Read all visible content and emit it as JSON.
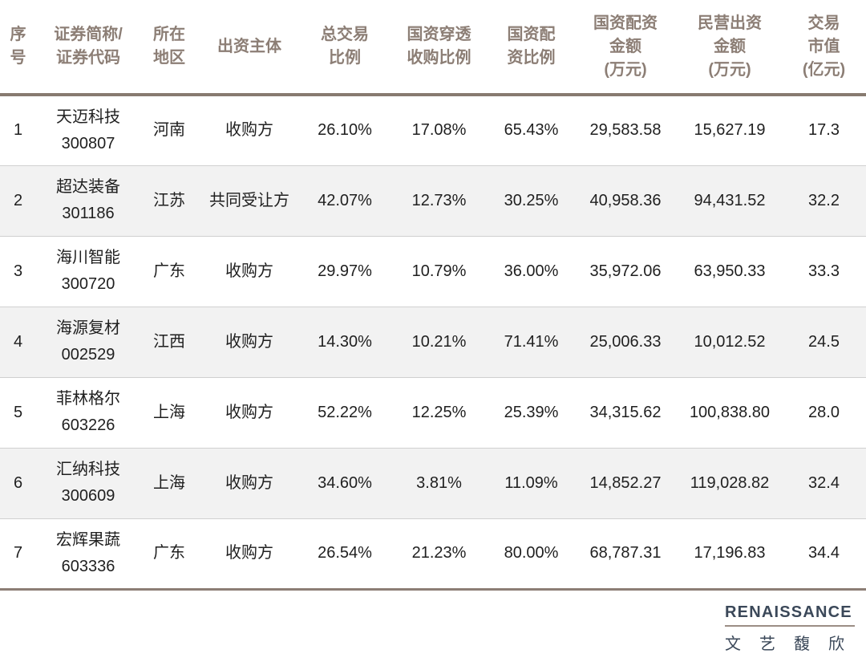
{
  "table": {
    "columns": [
      "序\n号",
      "证券简称/\n证券代码",
      "所在\n地区",
      "出资主体",
      "总交易\n比例",
      "国资穿透\n收购比例",
      "国资配\n资比例",
      "国资配资\n金额\n(万元)",
      "民营出资\n金额\n(万元)",
      "交易\n市值\n(亿元)"
    ],
    "rows": [
      {
        "no": "1",
        "name_code": "天迈科技\n300807",
        "region": "河南",
        "entity": "收购方",
        "total_ratio": "26.10%",
        "penetration_ratio": "17.08%",
        "allocation_ratio": "65.43%",
        "soe_amount": "29,583.58",
        "private_amount": "15,627.19",
        "market_cap": "17.3"
      },
      {
        "no": "2",
        "name_code": "超达装备\n301186",
        "region": "江苏",
        "entity": "共同受让方",
        "total_ratio": "42.07%",
        "penetration_ratio": "12.73%",
        "allocation_ratio": "30.25%",
        "soe_amount": "40,958.36",
        "private_amount": "94,431.52",
        "market_cap": "32.2"
      },
      {
        "no": "3",
        "name_code": "海川智能\n300720",
        "region": "广东",
        "entity": "收购方",
        "total_ratio": "29.97%",
        "penetration_ratio": "10.79%",
        "allocation_ratio": "36.00%",
        "soe_amount": "35,972.06",
        "private_amount": "63,950.33",
        "market_cap": "33.3"
      },
      {
        "no": "4",
        "name_code": "海源复材\n002529",
        "region": "江西",
        "entity": "收购方",
        "total_ratio": "14.30%",
        "penetration_ratio": "10.21%",
        "allocation_ratio": "71.41%",
        "soe_amount": "25,006.33",
        "private_amount": "10,012.52",
        "market_cap": "24.5"
      },
      {
        "no": "5",
        "name_code": "菲林格尔\n603226",
        "region": "上海",
        "entity": "收购方",
        "total_ratio": "52.22%",
        "penetration_ratio": "12.25%",
        "allocation_ratio": "25.39%",
        "soe_amount": "34,315.62",
        "private_amount": "100,838.80",
        "market_cap": "28.0"
      },
      {
        "no": "6",
        "name_code": "汇纳科技\n300609",
        "region": "上海",
        "entity": "收购方",
        "total_ratio": "34.60%",
        "penetration_ratio": "3.81%",
        "allocation_ratio": "11.09%",
        "soe_amount": "14,852.27",
        "private_amount": "119,028.82",
        "market_cap": "32.4"
      },
      {
        "no": "7",
        "name_code": "宏辉果蔬\n603336",
        "region": "广东",
        "entity": "收购方",
        "total_ratio": "26.54%",
        "penetration_ratio": "21.23%",
        "allocation_ratio": "80.00%",
        "soe_amount": "68,787.31",
        "private_amount": "17,196.83",
        "market_cap": "34.4"
      }
    ]
  },
  "footer": {
    "logo_en_first": "R",
    "logo_en_rest": "ENAISSANCE",
    "logo_cn": "文艺馥欣"
  },
  "colors": {
    "header_text": "#8C7E75",
    "header_rule": "#877A70",
    "bottom_rule": "#8C7E75",
    "row_alt_bg": "#F2F2F2",
    "body_text": "#1F1F1F",
    "row_divider": "#D0D0D0",
    "logo_navy": "#3B4859",
    "logo_taupe": "#9B8E85"
  }
}
